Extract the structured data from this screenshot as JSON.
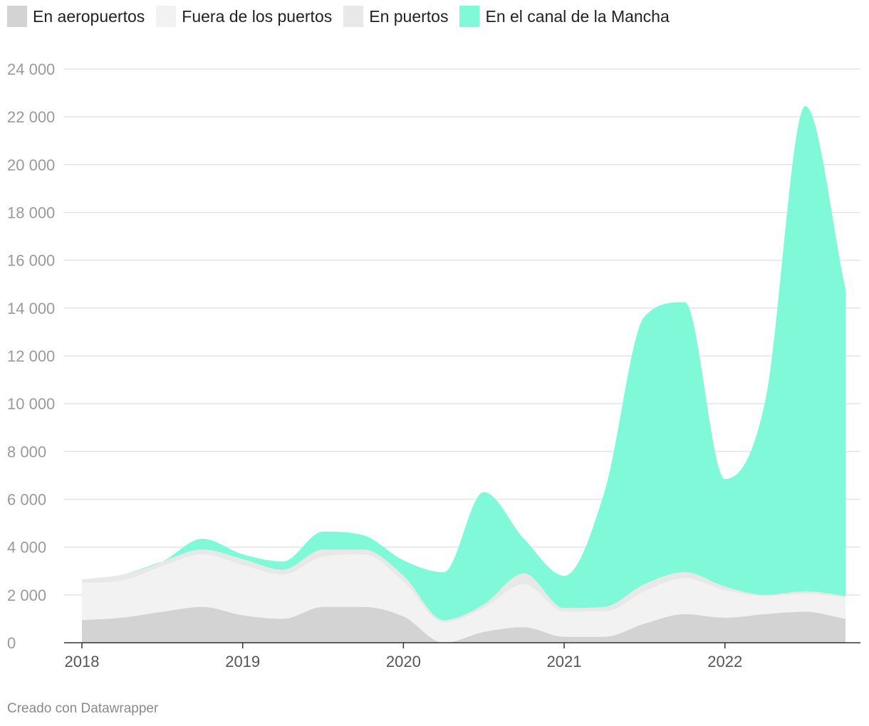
{
  "chart_data": {
    "type": "area",
    "stacked": true,
    "x": [
      2018.0,
      2018.25,
      2018.5,
      2018.75,
      2019.0,
      2019.25,
      2019.5,
      2019.75,
      2020.0,
      2020.25,
      2020.5,
      2020.75,
      2021.0,
      2021.25,
      2021.5,
      2021.75,
      2022.0,
      2022.25,
      2022.5,
      2022.75
    ],
    "series": [
      {
        "name": "En aeropuertos",
        "color": "#d3d3d3",
        "values": [
          950,
          1050,
          1300,
          1500,
          1150,
          1000,
          1500,
          1500,
          1100,
          0,
          450,
          650,
          250,
          250,
          800,
          1200,
          1050,
          1200,
          1300,
          1000
        ]
      },
      {
        "name": "Fuera de los puertos",
        "color": "#f2f2f2",
        "values": [
          1550,
          1550,
          1900,
          2200,
          2100,
          1850,
          2100,
          2200,
          1450,
          850,
          1000,
          1800,
          1050,
          1050,
          1350,
          1500,
          1150,
          750,
          750,
          900
        ]
      },
      {
        "name": "En puertos",
        "color": "#e8e8e8",
        "values": [
          150,
          250,
          200,
          200,
          250,
          200,
          300,
          200,
          250,
          100,
          150,
          450,
          150,
          200,
          300,
          250,
          150,
          50,
          100,
          50
        ]
      },
      {
        "name": "En el canal de la Mancha",
        "color": "#7ff9d8",
        "values": [
          0,
          0,
          0,
          450,
          200,
          350,
          750,
          600,
          650,
          2000,
          4700,
          1450,
          1350,
          4800,
          11200,
          11300,
          4500,
          8100,
          20300,
          12850
        ]
      }
    ],
    "xticks": [
      2018,
      2019,
      2020,
      2021,
      2022
    ],
    "xtick_labels": [
      "2018",
      "2019",
      "2020",
      "2021",
      "2022"
    ],
    "yticks": [
      0,
      2000,
      4000,
      6000,
      8000,
      10000,
      12000,
      14000,
      16000,
      18000,
      20000,
      22000,
      24000
    ],
    "ytick_labels": [
      "0",
      "2 000",
      "4 000",
      "6 000",
      "8 000",
      "10 000",
      "12 000",
      "14 000",
      "16 000",
      "18 000",
      "20 000",
      "22 000",
      "24 000"
    ],
    "ylim": [
      0,
      24000
    ],
    "xlim": [
      2018,
      2022.75
    ],
    "grid": true,
    "legend_position": "top"
  },
  "footer": {
    "credit": "Creado con Datawrapper"
  }
}
